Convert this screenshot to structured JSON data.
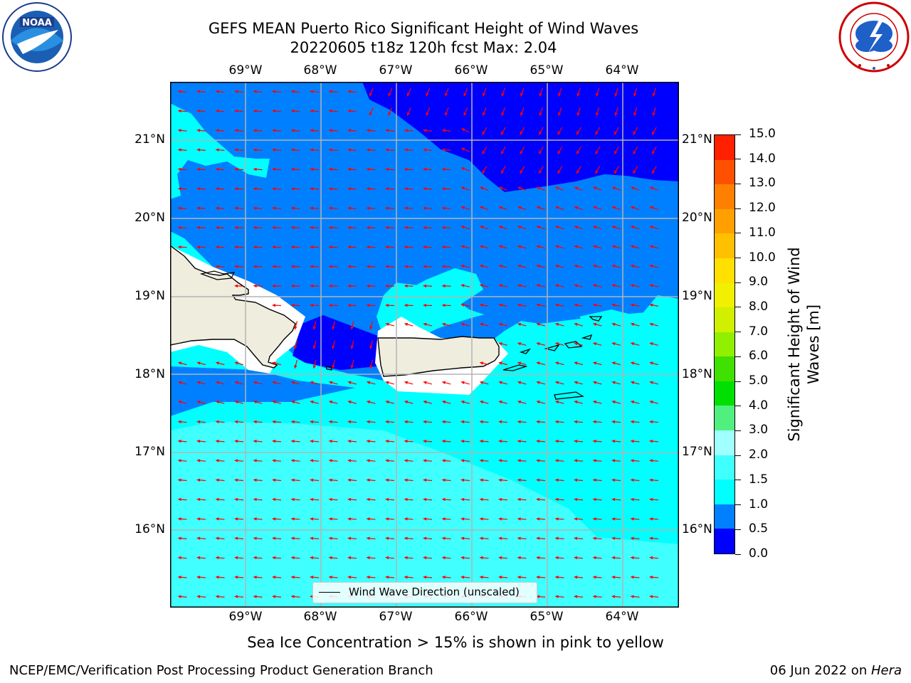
{
  "title": {
    "line1": "GEFS MEAN Puerto Rico Significant Height of Wind Waves",
    "line2": "20220605 t18z 120h fcst   Max: 2.04"
  },
  "lon_labels": [
    "69°W",
    "68°W",
    "67°W",
    "66°W",
    "65°W",
    "64°W"
  ],
  "lat_labels": [
    "21°N",
    "20°N",
    "19°N",
    "18°N",
    "17°N",
    "16°N"
  ],
  "colorbar": {
    "label_line1": "Significant Height of Wind",
    "label_line2": "Waves [m]",
    "ticks": [
      "0.0",
      "0.5",
      "1.0",
      "1.5",
      "2.0",
      "3.0",
      "4.0",
      "5.0",
      "6.0",
      "7.0",
      "8.0",
      "9.0",
      "10.0",
      "11.0",
      "12.0",
      "13.0",
      "14.0",
      "15.0"
    ],
    "colors": [
      "#0000ff",
      "#0080ff",
      "#00ffff",
      "#40ffff",
      "#a0ffff",
      "#50f080",
      "#00e000",
      "#40e000",
      "#90f000",
      "#d0f000",
      "#f0f000",
      "#ffe000",
      "#ffc000",
      "#ffa000",
      "#ff8000",
      "#ff5000",
      "#ff2000"
    ]
  },
  "legend_label": "Wind Wave Direction (unscaled)",
  "ice_note": "Sea Ice Concentration > 15% is shown in pink to yellow",
  "footer": {
    "left": "NCEP/EMC/Verification Post Processing Product Generation Branch",
    "date": "06 Jun 2022 on ",
    "machine": "Hera"
  },
  "colors": {
    "deep": "#0000ff",
    "mid": "#0080ff",
    "cyan": "#00ffff",
    "light": "#40ffff",
    "pale": "#a0ffff",
    "land": "#efedde",
    "arrow": "#ff0000"
  },
  "logos": [
    "noaa-logo",
    "nws-logo"
  ]
}
